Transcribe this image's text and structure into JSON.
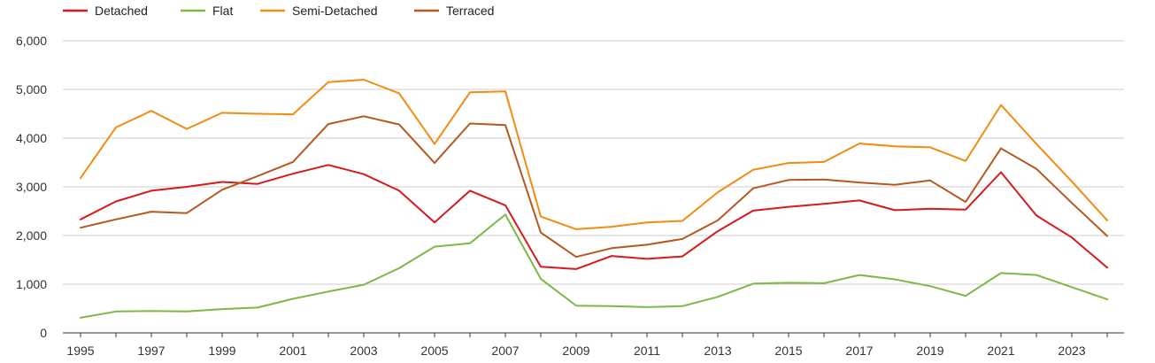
{
  "chart_data": {
    "type": "line",
    "title": "",
    "xlabel": "",
    "ylabel": "",
    "legend_position": "top-left",
    "grid": true,
    "ylim": [
      0,
      6000
    ],
    "y_ticks": [
      0,
      1000,
      2000,
      3000,
      4000,
      5000,
      6000
    ],
    "y_tick_labels": [
      "0",
      "1,000",
      "2,000",
      "3,000",
      "4,000",
      "5,000",
      "6,000"
    ],
    "xlim": [
      1995,
      2024
    ],
    "x_tick_labels": [
      "1995",
      "1997",
      "1999",
      "2001",
      "2003",
      "2005",
      "2007",
      "2009",
      "2011",
      "2013",
      "2015",
      "2017",
      "2019",
      "2021",
      "2023"
    ],
    "x": [
      1995,
      1996,
      1997,
      1998,
      1999,
      2000,
      2001,
      2002,
      2003,
      2004,
      2005,
      2006,
      2007,
      2008,
      2009,
      2010,
      2011,
      2012,
      2013,
      2014,
      2015,
      2016,
      2017,
      2018,
      2019,
      2020,
      2021,
      2022,
      2023,
      2024
    ],
    "series": [
      {
        "name": "Detached",
        "color": "#d7191c",
        "values": [
          2330,
          2700,
          2920,
          3000,
          3100,
          3060,
          3270,
          3450,
          3260,
          2920,
          2270,
          2920,
          2620,
          1360,
          1310,
          1580,
          1520,
          1570,
          2090,
          2510,
          2590,
          2650,
          2720,
          2520,
          2550,
          2530,
          3300,
          2410,
          1960,
          1340
        ]
      },
      {
        "name": "Flat",
        "color": "#7cb944",
        "values": [
          310,
          440,
          450,
          440,
          490,
          520,
          700,
          850,
          990,
          1330,
          1770,
          1840,
          2430,
          1110,
          560,
          550,
          530,
          550,
          740,
          1010,
          1030,
          1020,
          1190,
          1100,
          960,
          760,
          1230,
          1190,
          940,
          690
        ]
      },
      {
        "name": "Semi-Detached",
        "color": "#f28b12",
        "values": [
          3180,
          4220,
          4560,
          4190,
          4520,
          4500,
          4490,
          5150,
          5200,
          4920,
          3880,
          4940,
          4960,
          2390,
          2130,
          2180,
          2270,
          2300,
          2890,
          3350,
          3490,
          3510,
          3890,
          3830,
          3810,
          3530,
          4680,
          3880,
          3110,
          2310
        ]
      },
      {
        "name": "Terraced",
        "color": "#b5581f",
        "values": [
          2160,
          2330,
          2490,
          2460,
          2940,
          3220,
          3510,
          4290,
          4450,
          4280,
          3490,
          4300,
          4270,
          2060,
          1560,
          1740,
          1810,
          1930,
          2310,
          2970,
          3140,
          3150,
          3090,
          3040,
          3130,
          2690,
          3790,
          3370,
          2670,
          1990
        ]
      }
    ]
  }
}
